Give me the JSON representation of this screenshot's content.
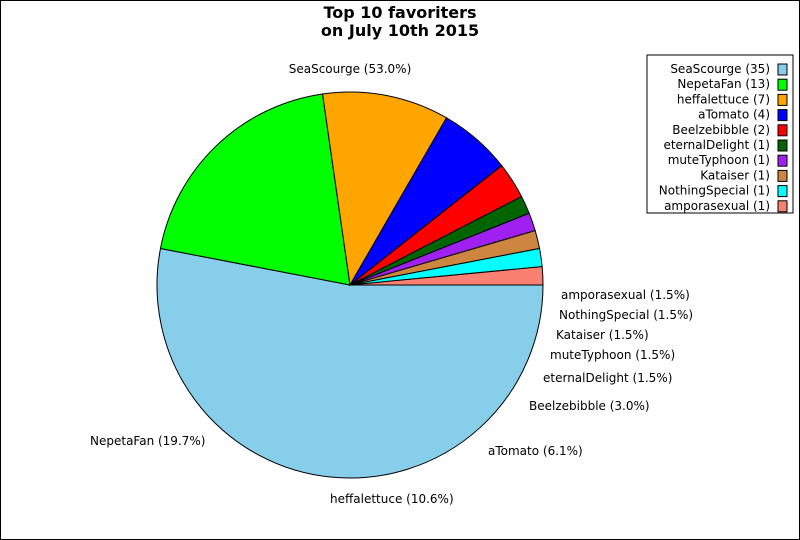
{
  "chart_data": {
    "type": "pie",
    "title": "Top 10 favoriters\non July 10th 2015",
    "title_lines": [
      "Top 10 favoriters",
      "on July 10th 2015"
    ],
    "start_angle_deg": 0,
    "direction": "clockwise",
    "legend_position": "top-right",
    "slices": [
      {
        "name": "SeaScourge",
        "value": 35,
        "label": "SeaScourge (53.0%)",
        "legend": "SeaScourge (35)",
        "color": "#87ceeb"
      },
      {
        "name": "NepetaFan",
        "value": 13,
        "label": "NepetaFan (19.7%)",
        "legend": "NepetaFan (13)",
        "color": "#00ff00"
      },
      {
        "name": "heffalettuce",
        "value": 7,
        "label": "heffalettuce (10.6%)",
        "legend": "heffalettuce (7)",
        "color": "#ffa500"
      },
      {
        "name": "aTomato",
        "value": 4,
        "label": "aTomato (6.1%)",
        "legend": "aTomato (4)",
        "color": "#0000ff"
      },
      {
        "name": "Beelzebibble",
        "value": 2,
        "label": "Beelzebibble (3.0%)",
        "legend": "Beelzebibble (2)",
        "color": "#ff0000"
      },
      {
        "name": "eternalDelight",
        "value": 1,
        "label": "eternalDelight (1.5%)",
        "legend": "eternalDelight (1)",
        "color": "#006400"
      },
      {
        "name": "muteTyphoon",
        "value": 1,
        "label": "muteTyphoon (1.5%)",
        "legend": "muteTyphoon (1)",
        "color": "#a020f0"
      },
      {
        "name": "Kataiser",
        "value": 1,
        "label": "Kataiser (1.5%)",
        "legend": "Kataiser (1)",
        "color": "#cd853f"
      },
      {
        "name": "NothingSpecial",
        "value": 1,
        "label": "NothingSpecial (1.5%)",
        "legend": "NothingSpecial (1)",
        "color": "#00ffff"
      },
      {
        "name": "amporasexual",
        "value": 1,
        "label": "amporasexual (1.5%)",
        "legend": "amporasexual (1)",
        "color": "#fa8072"
      }
    ]
  }
}
